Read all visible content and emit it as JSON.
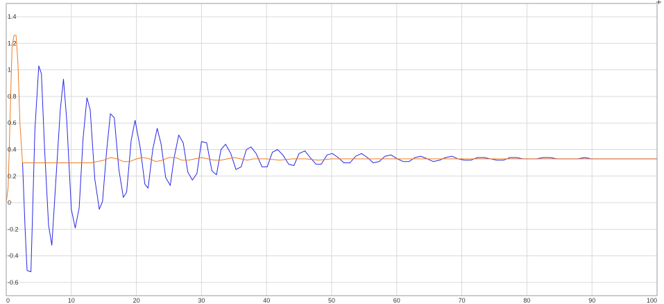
{
  "chart_data": {
    "type": "line",
    "title": "",
    "xlabel": "",
    "ylabel": "",
    "xlim": [
      0,
      100
    ],
    "ylim": [
      -0.7,
      1.5
    ],
    "grid": true,
    "legend": "none",
    "x_ticks": [
      "0",
      "10",
      "20",
      "30",
      "40",
      "50",
      "60",
      "70",
      "80",
      "90",
      "100"
    ],
    "y_ticks": [
      "-0.6",
      "-0.4",
      "-0.2",
      "0",
      "0.2",
      "0.4",
      "0.6",
      "0.8",
      "1",
      "1.2",
      "1.4"
    ],
    "series": [
      {
        "color": "#2626e6",
        "x": [
          2.5,
          2.9,
          3.2,
          3.8,
          4.4,
          5.0,
          5.4,
          5.9,
          6.5,
          7.0,
          7.6,
          8.3,
          8.8,
          9.3,
          10.0,
          10.6,
          11.2,
          11.8,
          12.4,
          12.9,
          13.6,
          14.3,
          14.8,
          15.4,
          16.0,
          16.6,
          17.3,
          18.0,
          18.5,
          19.2,
          19.8,
          20.6,
          21.3,
          21.8,
          22.5,
          23.2,
          23.8,
          24.5,
          25.2,
          25.8,
          26.5,
          27.2,
          27.9,
          28.6,
          29.3,
          30.0,
          30.8,
          31.6,
          32.3,
          33.0,
          33.7,
          34.5,
          35.3,
          36.1,
          36.9,
          37.6,
          38.4,
          39.3,
          40.1,
          40.9,
          41.7,
          42.5,
          43.4,
          44.2,
          45.0,
          45.9,
          46.7,
          47.6,
          48.4,
          49.3,
          50.1,
          51.0,
          51.9,
          52.8,
          53.7,
          54.6,
          55.5,
          56.4,
          57.3,
          58.2,
          59.1,
          60.1,
          61.0,
          61.9,
          62.8,
          63.7,
          64.7,
          65.6,
          66.6,
          67.5,
          68.5,
          69.4,
          70.4,
          71.4,
          72.4,
          73.4,
          74.4,
          75.4,
          76.4,
          77.4,
          78.4,
          79.4,
          80.5,
          81.5,
          82.5,
          83.6,
          84.6,
          85.7,
          86.7,
          87.8,
          88.9,
          89.9,
          91.0,
          92.1,
          93.2,
          94.3,
          95.4,
          96.5,
          97.6,
          98.7,
          100.0
        ],
        "y": [
          0.3,
          -0.2,
          -0.51,
          -0.52,
          0.55,
          1.03,
          0.97,
          0.4,
          -0.17,
          -0.32,
          0.15,
          0.7,
          0.93,
          0.62,
          -0.05,
          -0.19,
          -0.04,
          0.48,
          0.79,
          0.7,
          0.18,
          -0.05,
          0.01,
          0.38,
          0.67,
          0.64,
          0.25,
          0.04,
          0.08,
          0.47,
          0.62,
          0.41,
          0.14,
          0.11,
          0.4,
          0.56,
          0.44,
          0.19,
          0.13,
          0.34,
          0.51,
          0.45,
          0.23,
          0.17,
          0.22,
          0.46,
          0.45,
          0.24,
          0.21,
          0.4,
          0.44,
          0.37,
          0.25,
          0.27,
          0.4,
          0.42,
          0.37,
          0.27,
          0.27,
          0.38,
          0.4,
          0.36,
          0.29,
          0.28,
          0.37,
          0.39,
          0.34,
          0.29,
          0.29,
          0.36,
          0.37,
          0.34,
          0.3,
          0.3,
          0.35,
          0.37,
          0.34,
          0.3,
          0.31,
          0.35,
          0.36,
          0.33,
          0.31,
          0.31,
          0.34,
          0.35,
          0.33,
          0.31,
          0.32,
          0.34,
          0.35,
          0.33,
          0.32,
          0.32,
          0.34,
          0.34,
          0.33,
          0.32,
          0.32,
          0.34,
          0.34,
          0.33,
          0.33,
          0.33,
          0.34,
          0.34,
          0.33,
          0.33,
          0.33,
          0.33,
          0.34,
          0.33,
          0.33,
          0.33,
          0.33,
          0.33,
          0.33,
          0.33,
          0.33,
          0.33,
          0.33
        ]
      },
      {
        "color": "#f07a1e",
        "x": [
          0.0,
          0.3,
          0.6,
          0.9,
          1.2,
          1.5,
          1.8,
          2.1,
          2.5,
          3.0,
          5.0,
          8.0,
          11.0,
          13.0,
          14.0,
          15.0,
          16.0,
          17.0,
          18.0,
          19.0,
          20.0,
          21.0,
          22.0,
          23.0,
          24.0,
          25.0,
          26.0,
          27.0,
          28.0,
          29.0,
          30.0,
          31.0,
          32.0,
          33.0,
          34.0,
          35.0,
          36.0,
          37.0,
          38.0,
          40.0,
          42.0,
          44.0,
          46.0,
          48.0,
          50.0,
          52.0,
          54.0,
          56.0,
          58.0,
          60.0,
          62.0,
          64.0,
          66.0,
          68.0,
          70.0,
          72.0,
          74.0,
          76.0,
          78.0,
          80.0,
          85.0,
          90.0,
          95.0,
          100.0
        ],
        "y": [
          0.0,
          0.12,
          0.65,
          1.18,
          1.26,
          1.26,
          1.05,
          0.6,
          0.3,
          0.3,
          0.3,
          0.3,
          0.3,
          0.3,
          0.31,
          0.32,
          0.34,
          0.33,
          0.31,
          0.31,
          0.33,
          0.34,
          0.33,
          0.31,
          0.32,
          0.34,
          0.34,
          0.32,
          0.32,
          0.33,
          0.34,
          0.33,
          0.32,
          0.32,
          0.33,
          0.34,
          0.33,
          0.32,
          0.33,
          0.33,
          0.32,
          0.33,
          0.33,
          0.32,
          0.33,
          0.33,
          0.33,
          0.33,
          0.33,
          0.33,
          0.33,
          0.33,
          0.33,
          0.33,
          0.33,
          0.33,
          0.33,
          0.33,
          0.33,
          0.33,
          0.33,
          0.33,
          0.33,
          0.33
        ]
      }
    ]
  }
}
